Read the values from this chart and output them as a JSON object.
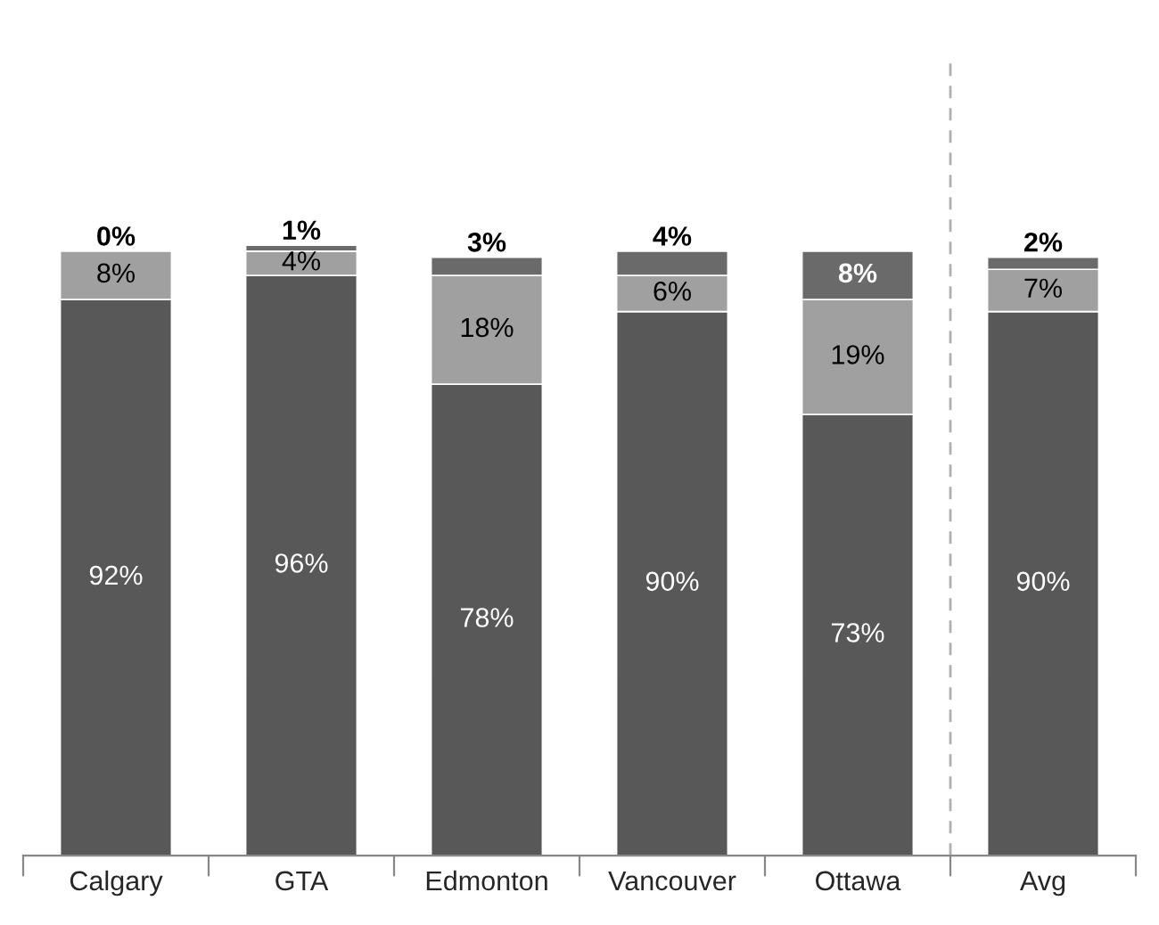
{
  "chart_data": {
    "type": "bar",
    "stacked": true,
    "legend": false,
    "grid": false,
    "categories": [
      "Calgary",
      "GTA",
      "Edmonton",
      "Vancouver",
      "Ottawa",
      "Avg"
    ],
    "series": [
      {
        "color": "#585858",
        "values": [
          92,
          96,
          78,
          90,
          73,
          90
        ],
        "value_labels": [
          "92%",
          "96%",
          "78%",
          "90%",
          "73%",
          "90%"
        ]
      },
      {
        "color": "#a0a0a0",
        "values": [
          8,
          4,
          18,
          6,
          19,
          7
        ],
        "value_labels": [
          "8%",
          "4%",
          "18%",
          "6%",
          "19%",
          "7%"
        ]
      },
      {
        "color": "#6a6a6a",
        "values": [
          0,
          1,
          3,
          4,
          8,
          2
        ],
        "value_labels": [
          "0%",
          "1%",
          "3%",
          "4%",
          "8%",
          "2%"
        ]
      }
    ]
  }
}
